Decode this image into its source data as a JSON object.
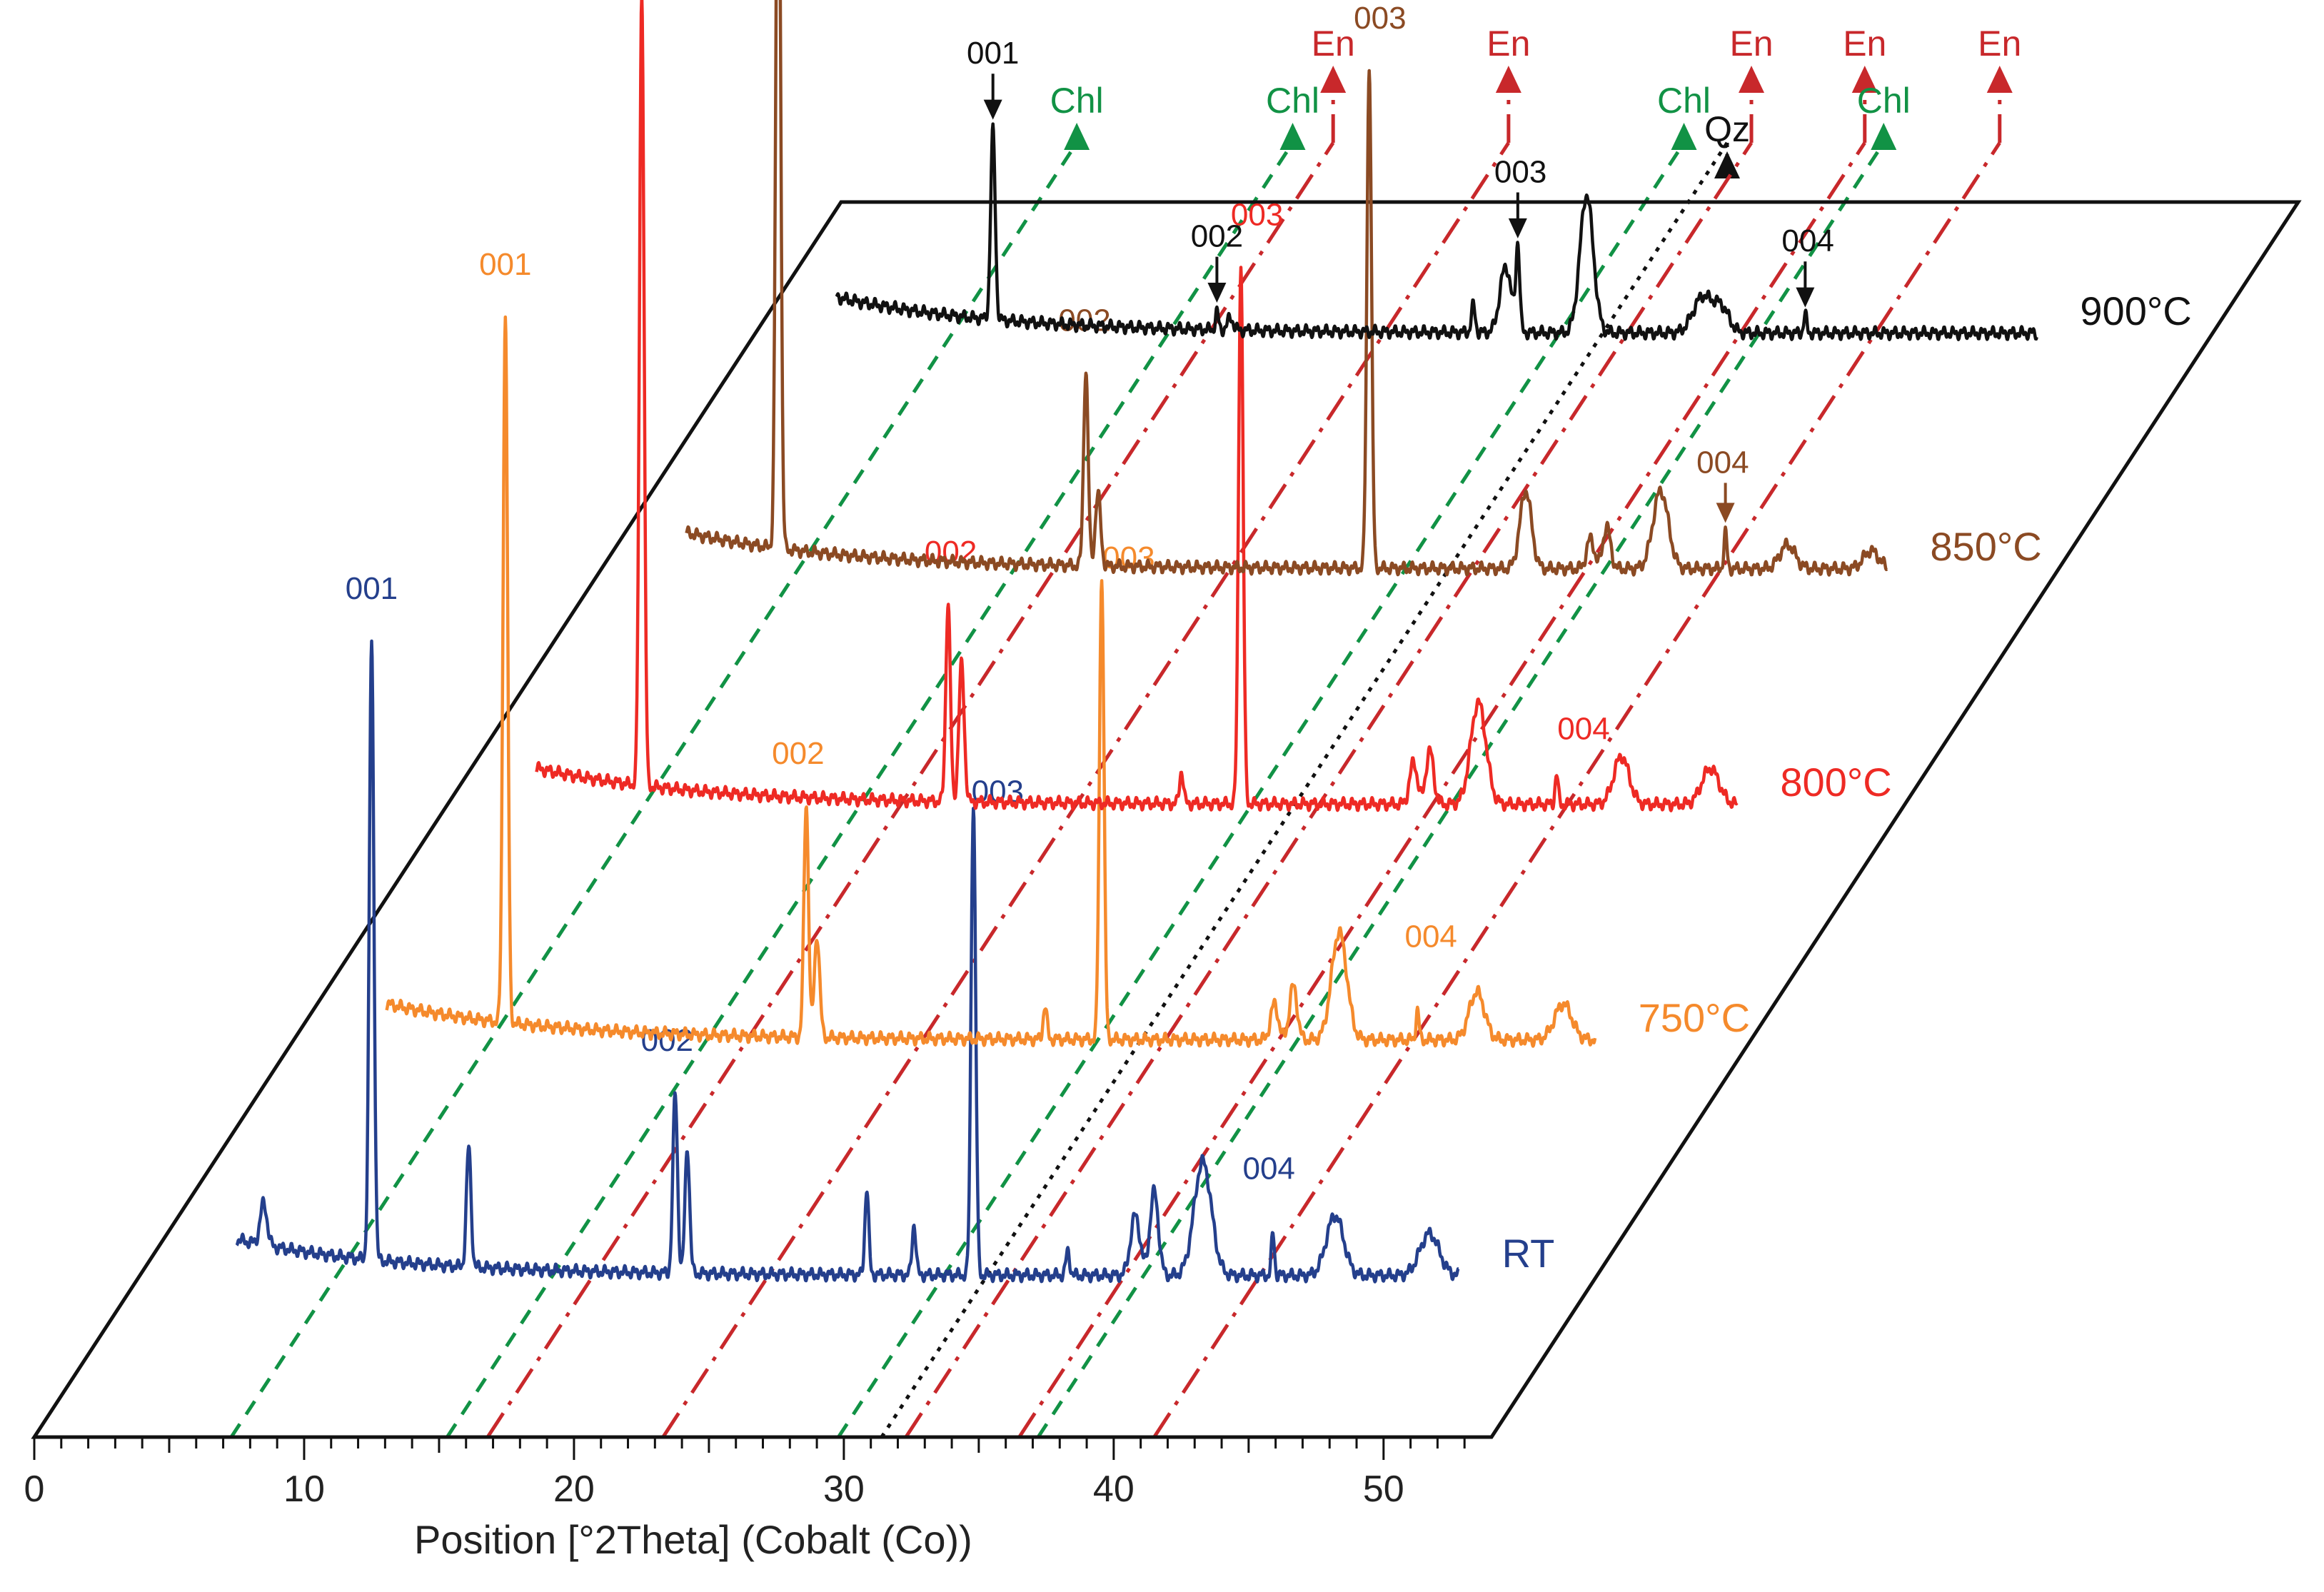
{
  "chart_data": {
    "type": "line",
    "xlabel": "Position [°2Theta] (Cobalt (Co))",
    "xlim": [
      0,
      54
    ],
    "x_ticks": [
      "0",
      "10",
      "20",
      "30",
      "40",
      "50"
    ],
    "series": [
      {
        "name": "RT",
        "color": "#243f8c",
        "depth": 0,
        "start": 7.5,
        "end": 52.8,
        "baseline": 0.05,
        "peaks": [
          {
            "x": 8.5,
            "h": 0.14,
            "w": 0.18
          },
          {
            "x": 12.5,
            "h": 2.06,
            "w": 0.12,
            "hkl": "001",
            "label_dx": 0.0,
            "label_dy": 0.06
          },
          {
            "x": 16.1,
            "h": 0.4,
            "w": 0.12
          },
          {
            "x": 23.75,
            "h": 0.6,
            "w": 0.12,
            "hkl": "002",
            "label_dx": -0.3,
            "label_dy": 0.06
          },
          {
            "x": 24.2,
            "h": 0.42,
            "w": 0.12
          },
          {
            "x": 30.85,
            "h": 0.29,
            "w": 0.1
          },
          {
            "x": 32.6,
            "h": 0.17,
            "w": 0.1
          },
          {
            "x": 34.8,
            "h": 1.57,
            "w": 0.12,
            "hkl": "003",
            "label_dx": 0.9,
            "label_dy": -0.06
          },
          {
            "x": 38.3,
            "h": 0.08,
            "w": 0.1
          },
          {
            "x": 40.8,
            "h": 0.2,
            "w": 0.25
          },
          {
            "x": 41.5,
            "h": 0.28,
            "w": 0.22
          },
          {
            "x": 43.3,
            "h": 0.38,
            "w": 0.45
          },
          {
            "x": 45.9,
            "h": 0.14,
            "w": 0.08,
            "hkl": "004",
            "label_dx": -0.15,
            "label_dy": 0.1
          },
          {
            "x": 48.2,
            "h": 0.2,
            "w": 0.45
          },
          {
            "x": 51.7,
            "h": 0.14,
            "w": 0.5
          }
        ]
      },
      {
        "name": "750°C",
        "color": "#f58a2c",
        "depth": 1,
        "start": 7.5,
        "end": 52.3,
        "baseline": 0.05,
        "peaks": [
          {
            "x": 11.9,
            "h": 2.36,
            "w": 0.12,
            "hkl": "001",
            "label_dx": 0.0,
            "label_dy": 0.06
          },
          {
            "x": 23.05,
            "h": 0.78,
            "w": 0.12,
            "hkl": "002",
            "label_dx": -0.3,
            "label_dy": 0.06
          },
          {
            "x": 23.45,
            "h": 0.34,
            "w": 0.14
          },
          {
            "x": 31.9,
            "h": 0.11,
            "w": 0.1
          },
          {
            "x": 34.0,
            "h": 1.55,
            "w": 0.12,
            "hkl": "003",
            "label_dx": 1.0,
            "label_dy": -0.04
          },
          {
            "x": 40.4,
            "h": 0.12,
            "w": 0.2
          },
          {
            "x": 41.1,
            "h": 0.18,
            "w": 0.2
          },
          {
            "x": 42.8,
            "h": 0.36,
            "w": 0.4
          },
          {
            "x": 45.7,
            "h": 0.1,
            "w": 0.08,
            "hkl": "004",
            "label_dx": 0.5,
            "label_dy": 0.12
          },
          {
            "x": 47.9,
            "h": 0.16,
            "w": 0.4
          },
          {
            "x": 51.1,
            "h": 0.12,
            "w": 0.45
          }
        ]
      },
      {
        "name": "800°C",
        "color": "#ee2a24",
        "depth": 2,
        "start": 7.5,
        "end": 52.0,
        "baseline": 0.05,
        "peaks": [
          {
            "x": 11.4,
            "h": 2.66,
            "w": 0.12,
            "hkl": "001",
            "label_dx": 0.0,
            "label_dy": 0.06
          },
          {
            "x": 22.75,
            "h": 0.66,
            "w": 0.12,
            "hkl": "002",
            "label_dx": 0.1,
            "label_dy": 0.06
          },
          {
            "x": 23.25,
            "h": 0.46,
            "w": 0.14
          },
          {
            "x": 31.4,
            "h": 0.11,
            "w": 0.1
          },
          {
            "x": 33.6,
            "h": 1.8,
            "w": 0.12,
            "hkl": "003",
            "label_dx": 0.6,
            "label_dy": 0.06
          },
          {
            "x": 40.0,
            "h": 0.14,
            "w": 0.2
          },
          {
            "x": 40.6,
            "h": 0.18,
            "w": 0.2
          },
          {
            "x": 42.4,
            "h": 0.34,
            "w": 0.4
          },
          {
            "x": 45.3,
            "h": 0.1,
            "w": 0.08,
            "hkl": "004",
            "label_dx": 1.0,
            "label_dy": 0.04
          },
          {
            "x": 47.7,
            "h": 0.16,
            "w": 0.4
          },
          {
            "x": 51.0,
            "h": 0.12,
            "w": 0.45
          }
        ]
      },
      {
        "name": "850°C",
        "color": "#8b4a23",
        "depth": 3,
        "start": 7.5,
        "end": 52.0,
        "baseline": 0.05,
        "peaks": [
          {
            "x": 10.9,
            "h": 2.83,
            "w": 0.12,
            "hkl": "001",
            "label_dx": 0.0,
            "label_dy": 0.06
          },
          {
            "x": 22.3,
            "h": 0.65,
            "w": 0.12,
            "hkl": "002",
            "label_dx": -0.05,
            "label_dy": 0.06
          },
          {
            "x": 22.75,
            "h": 0.24,
            "w": 0.14
          },
          {
            "x": 32.8,
            "h": 1.68,
            "w": 0.12,
            "hkl": "003",
            "label_dx": 0.4,
            "label_dy": 0.06
          },
          {
            "x": 38.6,
            "h": 0.26,
            "w": 0.3
          },
          {
            "x": 41.0,
            "h": 0.1,
            "w": 0.2
          },
          {
            "x": 41.6,
            "h": 0.14,
            "w": 0.2
          },
          {
            "x": 43.6,
            "h": 0.26,
            "w": 0.4
          },
          {
            "x": 46.0,
            "h": 0.12,
            "w": 0.08,
            "hkl": "004",
            "label_dx": -0.1,
            "label_dy": 0.1,
            "arrow": true
          },
          {
            "x": 48.3,
            "h": 0.08,
            "w": 0.4
          },
          {
            "x": 51.4,
            "h": 0.06,
            "w": 0.4
          }
        ]
      },
      {
        "name": "900°C",
        "color": "#111111",
        "depth": 4,
        "start": 7.5,
        "end": 52.0,
        "baseline": 0.05,
        "peaks": [
          {
            "x": 13.3,
            "h": 0.63,
            "w": 0.12,
            "hkl": "001",
            "label_dx": 0.0,
            "label_dy": 0.12,
            "arrow": true
          },
          {
            "x": 21.6,
            "h": 0.06,
            "w": 0.08,
            "hkl": "002",
            "label_dx": 0.0,
            "label_dy": 0.12,
            "arrow": true
          },
          {
            "x": 22.1,
            "h": 0.04,
            "w": 0.15
          },
          {
            "x": 31.1,
            "h": 0.09,
            "w": 0.1
          },
          {
            "x": 32.3,
            "h": 0.22,
            "w": 0.3
          },
          {
            "x": 32.75,
            "h": 0.28,
            "w": 0.1,
            "hkl": "003",
            "label_dx": 0.1,
            "label_dy": 0.12,
            "arrow": true
          },
          {
            "x": 35.3,
            "h": 0.46,
            "w": 0.35
          },
          {
            "x": 39.6,
            "h": 0.12,
            "w": 0.5
          },
          {
            "x": 40.3,
            "h": 0.08,
            "w": 0.4
          },
          {
            "x": 43.4,
            "h": 0.06,
            "w": 0.08,
            "hkl": "004",
            "label_dx": 0.1,
            "label_dy": 0.12,
            "arrow": true
          }
        ]
      }
    ],
    "reference_lines": [
      {
        "label": "Chl",
        "x": 7.3,
        "color": "#119245",
        "style": "dashed"
      },
      {
        "label": "Chl",
        "x": 15.3,
        "color": "#119245",
        "style": "dashed"
      },
      {
        "label": "En",
        "x": 16.8,
        "color": "#c8282b",
        "style": "dashdot"
      },
      {
        "label": "En",
        "x": 23.3,
        "color": "#c8282b",
        "style": "dashdot"
      },
      {
        "label": "Chl",
        "x": 29.8,
        "color": "#119245",
        "style": "dashed"
      },
      {
        "label": "Qz",
        "x": 31.4,
        "color": "#111111",
        "style": "dotted"
      },
      {
        "label": "En",
        "x": 32.3,
        "color": "#c8282b",
        "style": "dashdot"
      },
      {
        "label": "En",
        "x": 36.5,
        "color": "#c8282b",
        "style": "dashdot"
      },
      {
        "label": "Chl",
        "x": 37.2,
        "color": "#119245",
        "style": "dashed"
      },
      {
        "label": "En",
        "x": 41.5,
        "color": "#c8282b",
        "style": "dashdot"
      }
    ]
  }
}
